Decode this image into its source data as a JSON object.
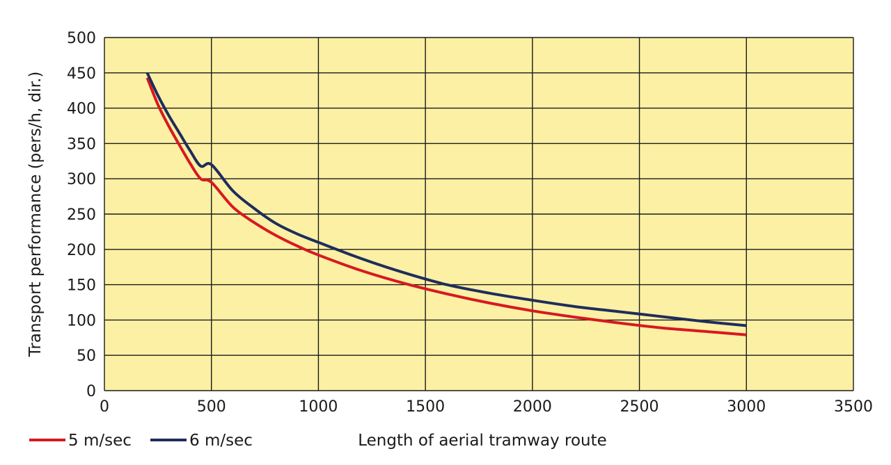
{
  "chart_data": {
    "type": "line",
    "title": "",
    "xlabel": "Length of aerial tramway route",
    "ylabel": "Transport performance (pers/h, dir.)",
    "xlim": [
      0,
      3500
    ],
    "ylim": [
      0,
      500
    ],
    "xticks": [
      0,
      500,
      1000,
      1500,
      2000,
      2500,
      3000,
      3500
    ],
    "yticks": [
      0,
      50,
      100,
      150,
      200,
      250,
      300,
      350,
      400,
      450,
      500
    ],
    "grid": true,
    "legend_position": "bottom-left",
    "colors": {
      "plot_background": "#fcf0a4",
      "grid": "#1a1a1a",
      "axis": "#1a1a1a"
    },
    "series": [
      {
        "name": "5 m/sec",
        "color": "#d71920",
        "x": [
          200,
          250,
          300,
          350,
          400,
          450,
          500,
          600,
          700,
          800,
          900,
          1000,
          1200,
          1400,
          1600,
          1800,
          2000,
          2200,
          2400,
          2600,
          2800,
          3000
        ],
        "y": [
          443,
          405,
          375,
          348,
          322,
          300,
          295,
          260,
          238,
          220,
          205,
          192,
          170,
          152,
          137,
          124,
          113,
          104,
          96,
          89,
          84,
          79
        ]
      },
      {
        "name": "6 m/sec",
        "color": "#1f2d5c",
        "x": [
          200,
          250,
          300,
          350,
          400,
          450,
          500,
          600,
          700,
          800,
          900,
          1000,
          1200,
          1400,
          1600,
          1800,
          2000,
          2200,
          2400,
          2600,
          2800,
          3000
        ],
        "y": [
          450,
          418,
          390,
          365,
          340,
          318,
          320,
          283,
          258,
          237,
          222,
          210,
          187,
          167,
          150,
          138,
          128,
          119,
          112,
          105,
          98,
          92
        ]
      }
    ]
  }
}
